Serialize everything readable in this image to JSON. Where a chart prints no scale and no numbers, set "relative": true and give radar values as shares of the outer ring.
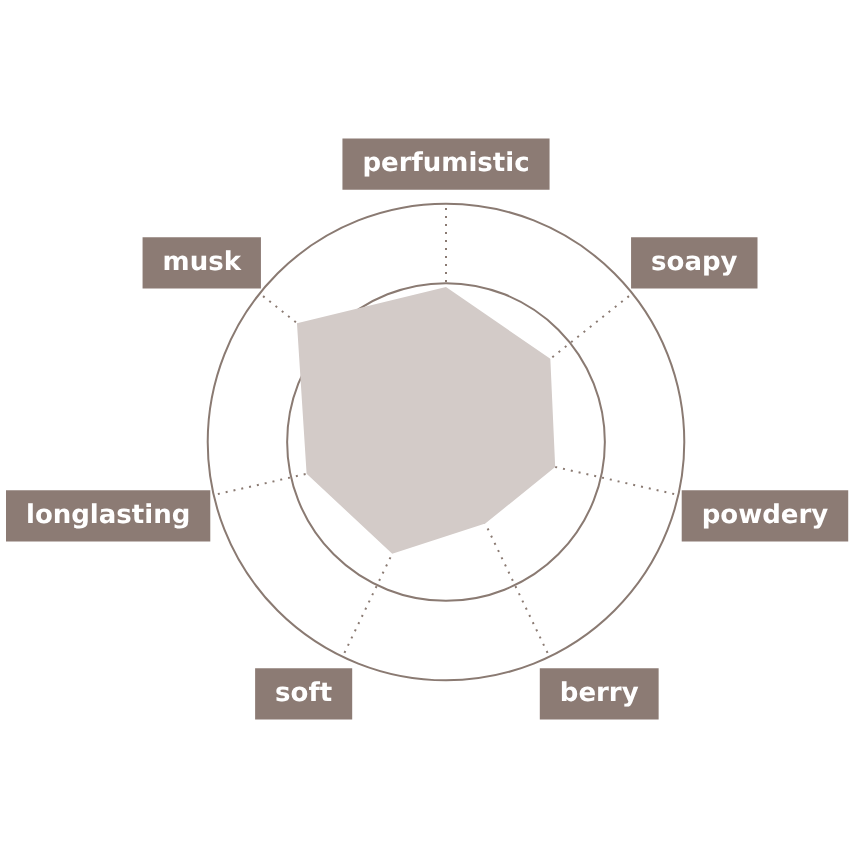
{
  "chart_data": {
    "type": "radar",
    "relative": true,
    "grid": true,
    "categories": [
      "perfumistic",
      "soapy",
      "powdery",
      "berry",
      "soft",
      "longlasting",
      "musk"
    ],
    "series": [
      {
        "color": "#d3cbc8",
        "values": [
          0.65,
          0.56,
          0.47,
          0.38,
          0.52,
          0.6,
          0.8
        ]
      }
    ]
  }
}
